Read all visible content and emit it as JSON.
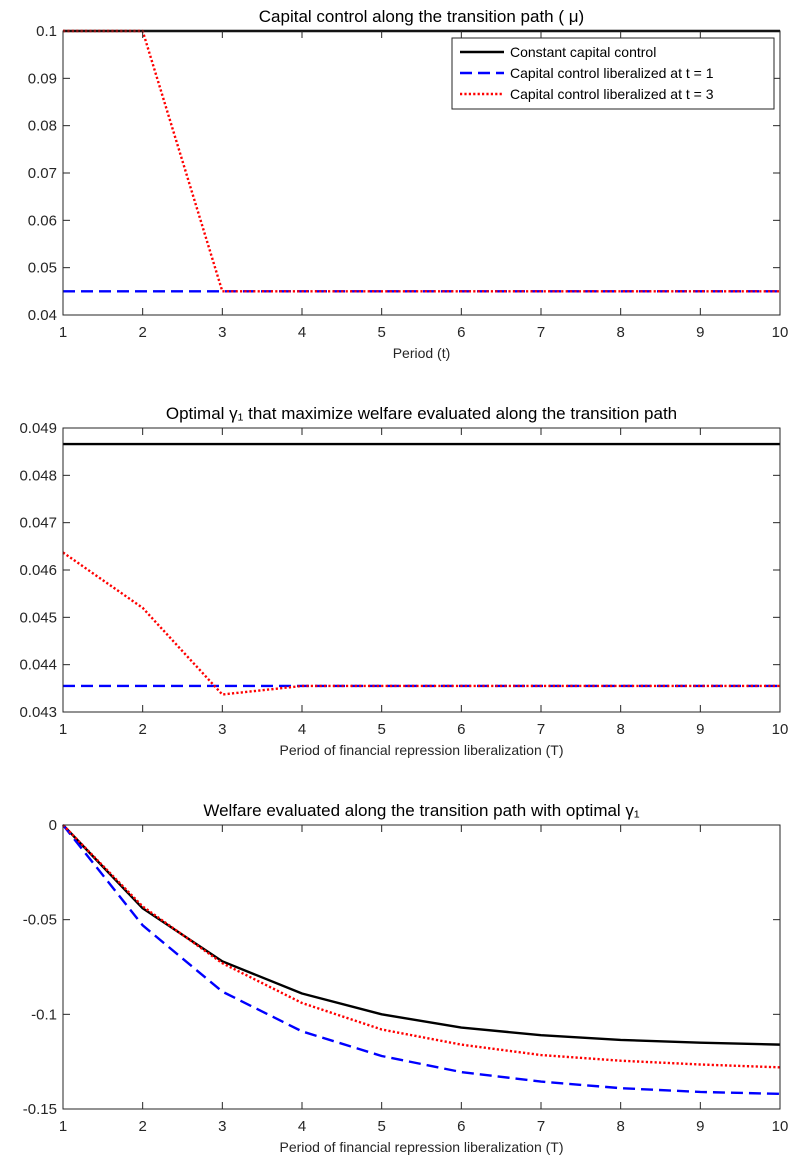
{
  "colors": {
    "constant": "#000000",
    "liberalized_t1": "#0000ff",
    "liberalized_t3": "#ff0000",
    "axes": "#262626"
  },
  "chart_data": [
    {
      "type": "line",
      "title": "Capital control along the transition path ( μ)",
      "xlabel": "Period (t)",
      "ylabel": "",
      "xlim": [
        1,
        10
      ],
      "ylim": [
        0.04,
        0.1
      ],
      "x_ticks": [
        1,
        2,
        3,
        4,
        5,
        6,
        7,
        8,
        9,
        10
      ],
      "y_ticks": [
        0.04,
        0.05,
        0.06,
        0.07,
        0.08,
        0.09,
        0.1
      ],
      "y_tick_labels": [
        "0.04",
        "0.05",
        "0.06",
        "0.07",
        "0.08",
        "0.09",
        "0.1"
      ],
      "x": [
        1,
        2,
        3,
        4,
        5,
        6,
        7,
        8,
        9,
        10
      ],
      "legend": {
        "placement": "top-right",
        "show": true
      },
      "series": [
        {
          "name": "Constant capital control",
          "style": "solid",
          "color": "#000000",
          "values": [
            0.1,
            0.1,
            0.1,
            0.1,
            0.1,
            0.1,
            0.1,
            0.1,
            0.1,
            0.1
          ]
        },
        {
          "name": "Capital control liberalized at t = 1",
          "style": "dashed",
          "color": "#0000ff",
          "values": [
            0.045,
            0.045,
            0.045,
            0.045,
            0.045,
            0.045,
            0.045,
            0.045,
            0.045,
            0.045
          ]
        },
        {
          "name": "Capital control liberalized at t = 3",
          "style": "dotted",
          "color": "#ff0000",
          "values": [
            0.1,
            0.1,
            0.045,
            0.045,
            0.045,
            0.045,
            0.045,
            0.045,
            0.045,
            0.045
          ]
        }
      ]
    },
    {
      "type": "line",
      "title": "Optimal γ₁ that maximize welfare evaluated along the transition path",
      "xlabel": "Period of financial repression liberalization (T)",
      "ylabel": "",
      "xlim": [
        1,
        10
      ],
      "ylim": [
        0.043,
        0.049
      ],
      "x_ticks": [
        1,
        2,
        3,
        4,
        5,
        6,
        7,
        8,
        9,
        10
      ],
      "y_ticks": [
        0.043,
        0.044,
        0.045,
        0.046,
        0.047,
        0.048,
        0.049
      ],
      "y_tick_labels": [
        "0.043",
        "0.044",
        "0.045",
        "0.046",
        "0.047",
        "0.048",
        "0.049"
      ],
      "x": [
        1,
        2,
        3,
        4,
        5,
        6,
        7,
        8,
        9,
        10
      ],
      "series": [
        {
          "name": "Constant capital control",
          "style": "solid",
          "color": "#000000",
          "values": [
            0.04866,
            0.04866,
            0.04866,
            0.04866,
            0.04866,
            0.04866,
            0.04866,
            0.04866,
            0.04866,
            0.04866
          ]
        },
        {
          "name": "Capital control liberalized at t = 1",
          "style": "dashed",
          "color": "#0000ff",
          "values": [
            0.04355,
            0.04355,
            0.04355,
            0.04355,
            0.04355,
            0.04355,
            0.04355,
            0.04355,
            0.04355,
            0.04355
          ]
        },
        {
          "name": "Capital control liberalized at t = 3",
          "style": "dotted",
          "color": "#ff0000",
          "values": [
            0.04637,
            0.0452,
            0.04337,
            0.04355,
            0.04355,
            0.04355,
            0.04355,
            0.04355,
            0.04355,
            0.04355
          ]
        }
      ]
    },
    {
      "type": "line",
      "title": "Welfare evaluated along the transition path with optimal γ₁",
      "xlabel": "Period of financial repression liberalization (T)",
      "ylabel": "",
      "xlim": [
        1,
        10
      ],
      "ylim": [
        -0.15,
        0
      ],
      "x_ticks": [
        1,
        2,
        3,
        4,
        5,
        6,
        7,
        8,
        9,
        10
      ],
      "y_ticks": [
        -0.15,
        -0.1,
        -0.05,
        0
      ],
      "y_tick_labels": [
        "-0.15",
        "-0.1",
        "-0.05",
        "0"
      ],
      "x": [
        1,
        2,
        3,
        4,
        5,
        6,
        7,
        8,
        9,
        10
      ],
      "series": [
        {
          "name": "Constant capital control",
          "style": "solid",
          "color": "#000000",
          "values": [
            0,
            -0.044,
            -0.072,
            -0.089,
            -0.1,
            -0.107,
            -0.111,
            -0.1135,
            -0.115,
            -0.116
          ]
        },
        {
          "name": "Capital control liberalized at t = 1",
          "style": "dashed",
          "color": "#0000ff",
          "values": [
            0,
            -0.053,
            -0.088,
            -0.109,
            -0.122,
            -0.1305,
            -0.1355,
            -0.139,
            -0.141,
            -0.142
          ]
        },
        {
          "name": "Capital control liberalized at t = 3",
          "style": "dotted",
          "color": "#ff0000",
          "values": [
            0,
            -0.043,
            -0.073,
            -0.094,
            -0.108,
            -0.116,
            -0.1215,
            -0.1245,
            -0.1265,
            -0.128
          ]
        }
      ]
    }
  ]
}
